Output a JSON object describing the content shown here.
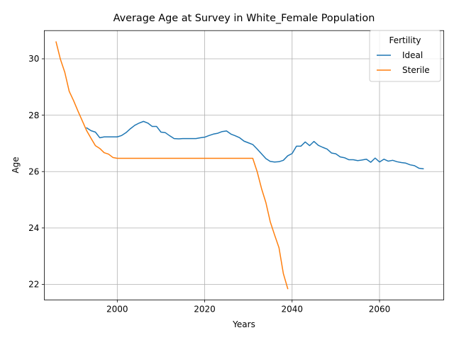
{
  "chart_data": {
    "type": "line",
    "title": "Average Age at Survey in White_Female Population",
    "xlabel": "Years",
    "ylabel": "Age",
    "xlim": [
      1983.3,
      2074.7
    ],
    "ylim": [
      21.45,
      31.0
    ],
    "xticks": [
      2000,
      2020,
      2040,
      2060
    ],
    "yticks": [
      22,
      24,
      26,
      28,
      30
    ],
    "grid": true,
    "legend": {
      "title": "Fertility",
      "placement": "top-right"
    },
    "series": [
      {
        "name": "Ideal",
        "color": "#1f77b4",
        "x": [
          1993,
          1994,
          1995,
          1996,
          1997,
          1998,
          1999,
          2000,
          2001,
          2002,
          2003,
          2004,
          2005,
          2006,
          2007,
          2008,
          2009,
          2010,
          2011,
          2012,
          2013,
          2014,
          2015,
          2016,
          2017,
          2018,
          2019,
          2020,
          2021,
          2022,
          2023,
          2024,
          2025,
          2026,
          2027,
          2028,
          2029,
          2030,
          2031,
          2032,
          2033,
          2034,
          2035,
          2036,
          2037,
          2038,
          2039,
          2040,
          2041,
          2042,
          2043,
          2044,
          2045,
          2046,
          2047,
          2048,
          2049,
          2050,
          2051,
          2052,
          2053,
          2054,
          2055,
          2056,
          2057,
          2058,
          2059,
          2060,
          2061,
          2062,
          2063,
          2064,
          2065,
          2066,
          2067,
          2068,
          2069,
          2070
        ],
        "values": [
          27.55,
          27.45,
          27.4,
          27.2,
          27.23,
          27.23,
          27.23,
          27.23,
          27.28,
          27.38,
          27.52,
          27.64,
          27.72,
          27.78,
          27.72,
          27.6,
          27.6,
          27.4,
          27.38,
          27.27,
          27.17,
          27.16,
          27.17,
          27.17,
          27.17,
          27.17,
          27.2,
          27.22,
          27.28,
          27.33,
          27.36,
          27.42,
          27.44,
          27.33,
          27.27,
          27.2,
          27.08,
          27.02,
          26.96,
          26.8,
          26.63,
          26.46,
          26.36,
          26.34,
          26.35,
          26.4,
          26.56,
          26.64,
          26.9,
          26.9,
          27.05,
          26.92,
          27.07,
          26.93,
          26.86,
          26.8,
          26.66,
          26.63,
          26.52,
          26.49,
          26.42,
          26.42,
          26.39,
          26.41,
          26.44,
          26.33,
          26.48,
          26.34,
          26.44,
          26.37,
          26.4,
          26.35,
          26.32,
          26.3,
          26.24,
          26.21,
          26.12,
          26.1
        ]
      },
      {
        "name": "Sterile",
        "color": "#ff7f0e",
        "x": [
          1986,
          1987,
          1988,
          1989,
          1990,
          1991,
          1992,
          1993,
          1994,
          1995,
          1996,
          1997,
          1998,
          1999,
          2000,
          2001,
          2002,
          2003,
          2004,
          2005,
          2006,
          2007,
          2008,
          2009,
          2010,
          2011,
          2012,
          2013,
          2014,
          2015,
          2016,
          2017,
          2018,
          2019,
          2020,
          2021,
          2022,
          2023,
          2024,
          2025,
          2026,
          2027,
          2028,
          2029,
          2030,
          2031,
          2032,
          2033,
          2034,
          2035,
          2036,
          2037,
          2038,
          2039
        ],
        "values": [
          30.6,
          29.98,
          29.52,
          28.85,
          28.52,
          28.15,
          27.8,
          27.45,
          27.18,
          26.92,
          26.82,
          26.67,
          26.62,
          26.5,
          26.47,
          26.47,
          26.47,
          26.47,
          26.47,
          26.47,
          26.47,
          26.47,
          26.47,
          26.47,
          26.47,
          26.47,
          26.47,
          26.47,
          26.47,
          26.47,
          26.47,
          26.47,
          26.47,
          26.47,
          26.47,
          26.47,
          26.47,
          26.47,
          26.47,
          26.47,
          26.47,
          26.47,
          26.47,
          26.47,
          26.47,
          26.47,
          26.0,
          25.4,
          24.9,
          24.22,
          23.75,
          23.3,
          22.38,
          21.85
        ]
      }
    ]
  }
}
